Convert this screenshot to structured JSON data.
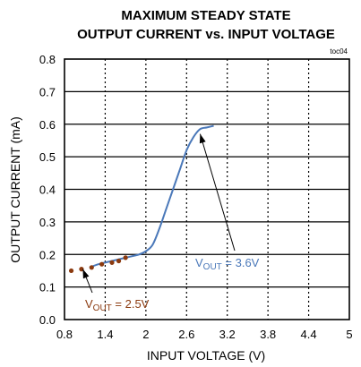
{
  "chart_data": {
    "type": "line",
    "title_line1": "MAXIMUM STEADY STATE",
    "title_line2": "OUTPUT CURRENT vs. INPUT VOLTAGE",
    "id_label": "toc04",
    "xlabel": "INPUT VOLTAGE (V)",
    "ylabel": "OUTPUT CURRENT (mA)",
    "xlim": [
      0.8,
      5.0
    ],
    "ylim": [
      0.0,
      0.8
    ],
    "x_ticks": [
      "0.8",
      "1.4",
      "2",
      "2.6",
      "3.2",
      "3.8",
      "4.4",
      "5"
    ],
    "x_tick_values": [
      0.8,
      1.4,
      2.0,
      2.6,
      3.2,
      3.8,
      4.4,
      5.0
    ],
    "y_ticks": [
      "0.0",
      "0.1",
      "0.2",
      "0.3",
      "0.4",
      "0.5",
      "0.6",
      "0.7",
      "0.8"
    ],
    "y_tick_values": [
      0.0,
      0.1,
      0.2,
      0.3,
      0.4,
      0.5,
      0.6,
      0.7,
      0.8
    ],
    "grid": true,
    "series": [
      {
        "color": "#4a78b9",
        "style": "line",
        "x": [
          1.17,
          1.3,
          1.5,
          1.7,
          1.9,
          2.0,
          2.1,
          2.2,
          2.3,
          2.4,
          2.5,
          2.6,
          2.7,
          2.8,
          2.9,
          3.0
        ],
        "y": [
          0.16,
          0.17,
          0.18,
          0.19,
          0.2,
          0.21,
          0.23,
          0.28,
          0.34,
          0.4,
          0.46,
          0.52,
          0.56,
          0.585,
          0.59,
          0.595
        ]
      },
      {
        "color": "#8b3a0f",
        "style": "dots",
        "x": [
          0.9,
          1.05,
          1.2,
          1.35,
          1.5,
          1.6,
          1.7
        ],
        "y": [
          0.15,
          0.155,
          0.16,
          0.17,
          0.175,
          0.18,
          0.19
        ]
      }
    ],
    "annotations": [
      {
        "label_main": "V",
        "label_sub": "OUT",
        "label_rest": " = 3.6V",
        "color": "#4a78b9",
        "arrow_to": [
          2.8,
          0.57
        ]
      },
      {
        "label_main": "V",
        "label_sub": "OUT",
        "label_rest": " = 2.5V",
        "color": "#8b3a0f",
        "arrow_to": [
          1.07,
          0.155
        ]
      }
    ]
  }
}
